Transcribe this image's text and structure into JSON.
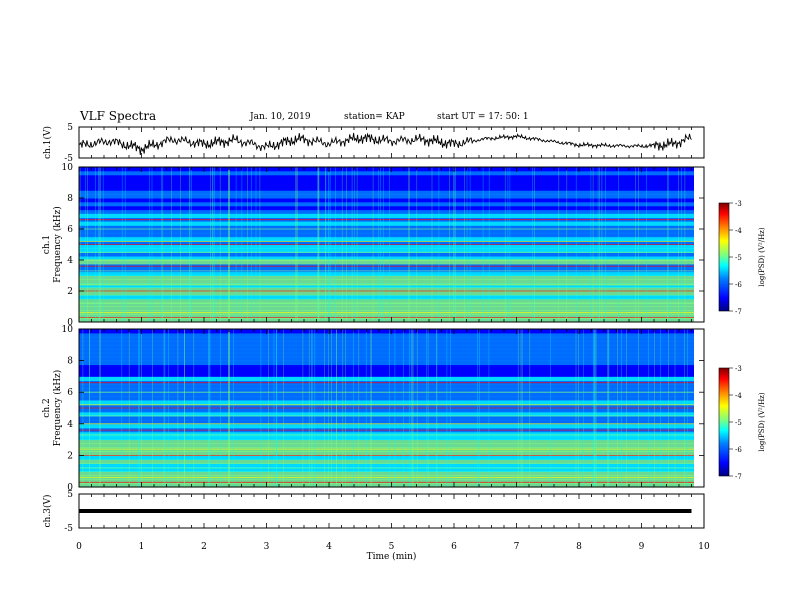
{
  "header": {
    "title": "VLF Spectra",
    "date": "Jan. 10, 2019",
    "station": "station= KAP",
    "start": "start UT =  17: 50: 1"
  },
  "colors": {
    "trace": "#000000",
    "colormap": [
      "#00007f",
      "#0000ff",
      "#007fff",
      "#00ffff",
      "#7fff7f",
      "#ffff00",
      "#ff7f00",
      "#ff0000",
      "#7f0000"
    ]
  },
  "chart_data": [
    {
      "type": "line",
      "name": "ch1-waveform",
      "ylabel": "ch.1(V)",
      "ylim": [
        -5,
        5
      ],
      "yticks": [
        "5",
        "-5"
      ],
      "xlim": [
        0,
        10
      ],
      "x": [
        0,
        0.5,
        1,
        1.5,
        2,
        2.5,
        3,
        3.5,
        4,
        4.5,
        5,
        5.5,
        6,
        6.5,
        7,
        7.5,
        8,
        8.5,
        9,
        9.5,
        9.8
      ],
      "y": [
        -1,
        0.5,
        -2,
        1,
        -0.5,
        0.8,
        -1.5,
        1.2,
        -0.3,
        1.5,
        0.5,
        1,
        -0.5,
        1.2,
        2,
        0.5,
        -0.8,
        -1,
        -1.2,
        -0.5,
        1.5
      ]
    },
    {
      "type": "heatmap",
      "name": "ch1-spectrogram",
      "ylabel_top": "ch.1",
      "ylabel": "Frequency (kHz)",
      "ylim": [
        0,
        10
      ],
      "yticks": [
        "0",
        "2",
        "4",
        "6",
        "8",
        "10"
      ],
      "xlim": [
        0,
        10
      ],
      "colorbar": {
        "label": "log(PSD) (V²/Hz)",
        "range": [
          -7,
          -3
        ],
        "ticks": [
          "-3",
          "-4",
          "-5",
          "-6",
          "-7"
        ]
      }
    },
    {
      "type": "heatmap",
      "name": "ch2-spectrogram",
      "ylabel_top": "ch.2",
      "ylabel": "Frequency (kHz)",
      "ylim": [
        0,
        10
      ],
      "yticks": [
        "0",
        "2",
        "4",
        "6",
        "8",
        "10"
      ],
      "xlim": [
        0,
        10
      ],
      "colorbar": {
        "label": "log(PSD) (V²/Hz)",
        "range": [
          -7,
          -3
        ],
        "ticks": [
          "-3",
          "-4",
          "-5",
          "-6",
          "-7"
        ]
      }
    },
    {
      "type": "line",
      "name": "ch3-waveform",
      "ylabel": "ch.3(V)",
      "ylim": [
        -5,
        5
      ],
      "yticks": [
        "5",
        "-5"
      ],
      "xlim": [
        0,
        9.8
      ],
      "x": [
        0,
        9.8
      ],
      "y": [
        0,
        0
      ]
    }
  ],
  "xaxis": {
    "label": "Time (min)",
    "ticks": [
      "0",
      "1",
      "2",
      "3",
      "4",
      "5",
      "6",
      "7",
      "8",
      "9",
      "10"
    ]
  }
}
